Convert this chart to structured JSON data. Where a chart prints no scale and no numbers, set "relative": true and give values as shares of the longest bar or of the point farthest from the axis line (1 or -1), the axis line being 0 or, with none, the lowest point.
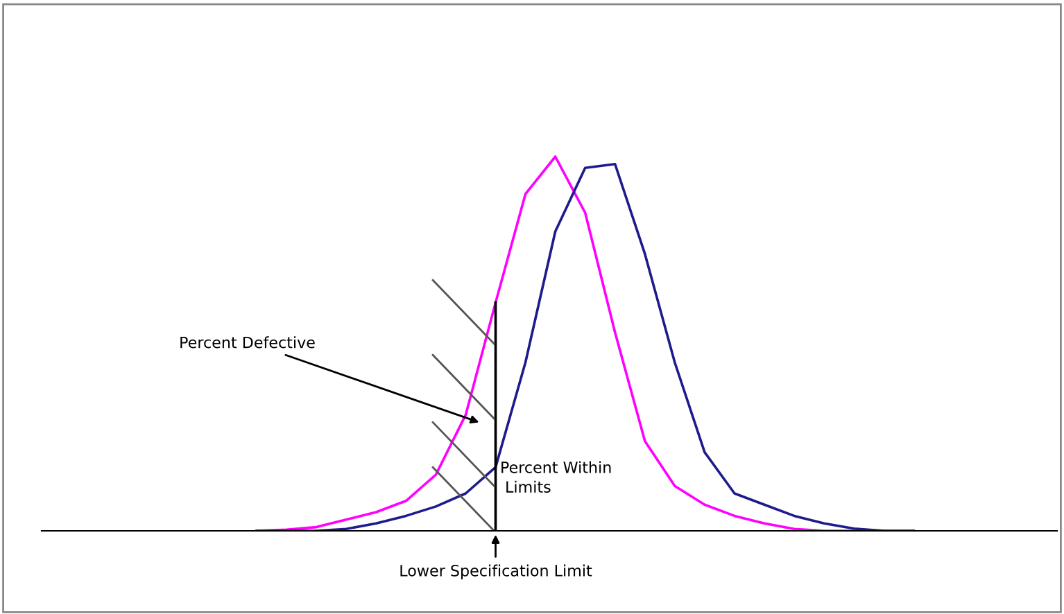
{
  "chart_data": {
    "type": "line",
    "relative": true,
    "marker": "none",
    "line_style": "solid",
    "categories": [
      null,
      null,
      null,
      null,
      null,
      null,
      null,
      null,
      null,
      null,
      null,
      null,
      null,
      null,
      null,
      null,
      null,
      null,
      null,
      null,
      null,
      null,
      null
    ],
    "series": [
      {
        "color": "#ff00ff",
        "values": [
          0,
          0.003,
          0.01,
          0.03,
          0.05,
          0.08,
          0.15,
          0.31,
          0.61,
          0.9,
          1.0,
          0.85,
          0.53,
          0.24,
          0.12,
          0.07,
          0.04,
          0.02,
          0.005,
          0,
          0,
          0,
          0
        ]
      },
      {
        "color": "#1c1c8c",
        "values": [
          0,
          0,
          0,
          0.005,
          0.02,
          0.04,
          0.065,
          0.1,
          0.17,
          0.45,
          0.8,
          0.97,
          0.98,
          0.74,
          0.45,
          0.21,
          0.1,
          0.07,
          0.04,
          0.02,
          0.006,
          0,
          0
        ]
      }
    ],
    "annotations": [
      "Percent Defective",
      "Percent Within\n Limits",
      "Lower Specification Limit"
    ]
  }
}
